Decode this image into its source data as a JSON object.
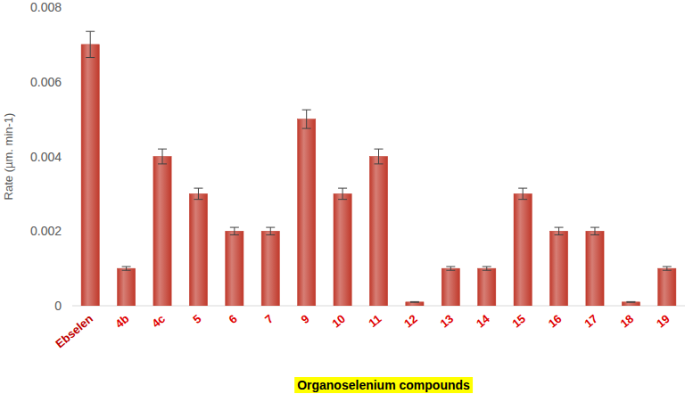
{
  "chart_data": {
    "type": "bar",
    "ylabel": "Rate (µm. min-1)",
    "xlabel": "Organoselenium compounds",
    "categories": [
      "Ebselen",
      "4b",
      "4c",
      "5",
      "6",
      "7",
      "9",
      "10",
      "11",
      "12",
      "13",
      "14",
      "15",
      "16",
      "17",
      "18",
      "19"
    ],
    "values": [
      0.007,
      0.001,
      0.004,
      0.003,
      0.002,
      0.002,
      0.005,
      0.003,
      0.004,
      0.0001,
      0.001,
      0.001,
      0.003,
      0.002,
      0.002,
      0.0001,
      0.001
    ],
    "errors": [
      0.00035,
      5e-05,
      0.0002,
      0.00015,
      0.0001,
      0.0001,
      0.00025,
      0.00015,
      0.0002,
      1e-05,
      5e-05,
      5e-05,
      0.00015,
      0.0001,
      0.0001,
      1e-05,
      5e-05
    ],
    "color": "#c0392b",
    "ylim": [
      0,
      0.008
    ],
    "yticks": [
      0,
      0.002,
      0.004,
      0.006,
      0.008
    ],
    "grid": false
  }
}
